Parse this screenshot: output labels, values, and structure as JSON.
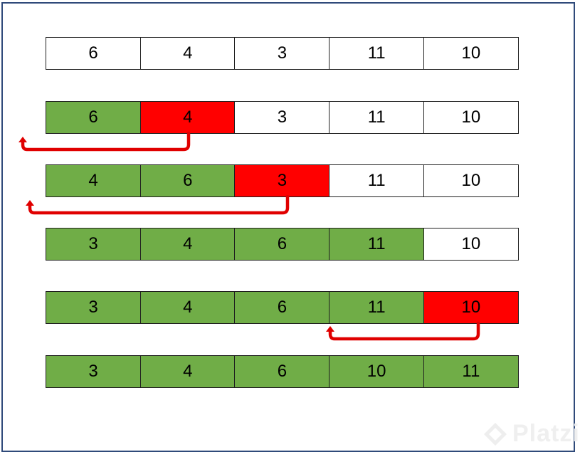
{
  "colors": {
    "sorted": "#70ad47",
    "key": "#ff0000",
    "unsorted": "#ffffff",
    "arrow": "#e00000",
    "frame": "#2f4a7a"
  },
  "rows": [
    {
      "cells": [
        {
          "value": "6",
          "state": "unsorted"
        },
        {
          "value": "4",
          "state": "unsorted"
        },
        {
          "value": "3",
          "state": "unsorted"
        },
        {
          "value": "11",
          "state": "unsorted"
        },
        {
          "value": "10",
          "state": "unsorted"
        }
      ]
    },
    {
      "cells": [
        {
          "value": "6",
          "state": "sorted"
        },
        {
          "value": "4",
          "state": "key"
        },
        {
          "value": "3",
          "state": "unsorted"
        },
        {
          "value": "11",
          "state": "unsorted"
        },
        {
          "value": "10",
          "state": "unsorted"
        }
      ]
    },
    {
      "cells": [
        {
          "value": "4",
          "state": "sorted"
        },
        {
          "value": "6",
          "state": "sorted"
        },
        {
          "value": "3",
          "state": "key"
        },
        {
          "value": "11",
          "state": "unsorted"
        },
        {
          "value": "10",
          "state": "unsorted"
        }
      ]
    },
    {
      "cells": [
        {
          "value": "3",
          "state": "sorted"
        },
        {
          "value": "4",
          "state": "sorted"
        },
        {
          "value": "6",
          "state": "sorted"
        },
        {
          "value": "11",
          "state": "sorted"
        },
        {
          "value": "10",
          "state": "unsorted"
        }
      ]
    },
    {
      "cells": [
        {
          "value": "3",
          "state": "sorted"
        },
        {
          "value": "4",
          "state": "sorted"
        },
        {
          "value": "6",
          "state": "sorted"
        },
        {
          "value": "11",
          "state": "sorted"
        },
        {
          "value": "10",
          "state": "key"
        }
      ]
    },
    {
      "cells": [
        {
          "value": "3",
          "state": "sorted"
        },
        {
          "value": "4",
          "state": "sorted"
        },
        {
          "value": "6",
          "state": "sorted"
        },
        {
          "value": "10",
          "state": "sorted"
        },
        {
          "value": "11",
          "state": "sorted"
        }
      ]
    }
  ],
  "watermark": {
    "text": "Platzi",
    "icon": "platzi-logo-icon"
  }
}
